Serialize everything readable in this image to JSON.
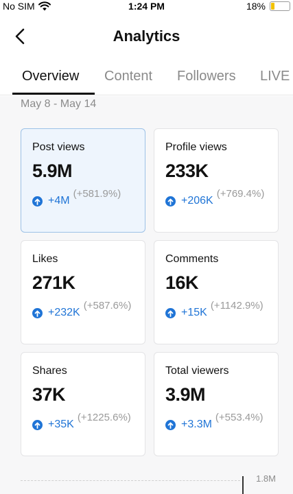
{
  "status_bar": {
    "carrier": "No SIM",
    "time": "1:24 PM",
    "battery": "18%",
    "battery_level": 0.18
  },
  "nav": {
    "title": "Analytics"
  },
  "tabs": [
    {
      "label": "Overview",
      "active": true
    },
    {
      "label": "Content",
      "active": false
    },
    {
      "label": "Followers",
      "active": false
    },
    {
      "label": "LIVE",
      "active": false
    }
  ],
  "date_range": "May 8 - May 14",
  "metrics": [
    {
      "label": "Post views",
      "value": "5.9M",
      "delta": "+4M",
      "pct": "(+581.9%)",
      "selected": true
    },
    {
      "label": "Profile views",
      "value": "233K",
      "delta": "+206K",
      "pct": "(+769.4%)",
      "selected": false
    },
    {
      "label": "Likes",
      "value": "271K",
      "delta": "+232K",
      "pct": "(+587.6%)",
      "selected": false
    },
    {
      "label": "Comments",
      "value": "16K",
      "delta": "+15K",
      "pct": "(+1142.9%)",
      "selected": false
    },
    {
      "label": "Shares",
      "value": "37K",
      "delta": "+35K",
      "pct": "(+1225.6%)",
      "selected": false
    },
    {
      "label": "Total viewers",
      "value": "3.9M",
      "delta": "+3.3M",
      "pct": "(+553.4%)",
      "selected": false
    }
  ],
  "chart": {
    "max_tick": "1.8M"
  },
  "colors": {
    "accent": "#1f74d6",
    "selected_card_bg": "#eef5fd",
    "battery": "#f2c200"
  },
  "icons": {
    "back": "chevron-left-icon",
    "up": "arrow-up-circle-icon",
    "wifi": "wifi-icon",
    "battery": "battery-icon"
  }
}
